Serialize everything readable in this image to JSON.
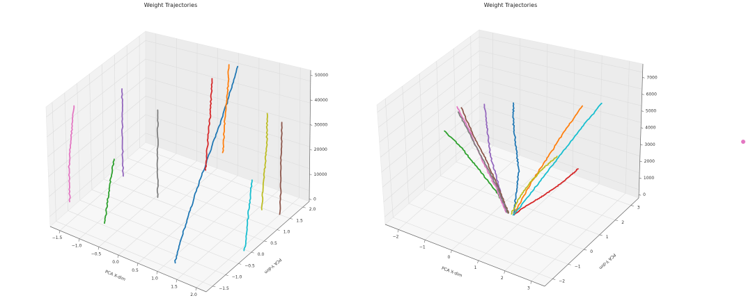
{
  "chart_data": [
    {
      "type": "line3d",
      "title": "Weight Trajectories",
      "xlabel": "PCA X-dim",
      "ylabel": "PCA Y-dim",
      "zlabel": "",
      "xlim": [
        -1.8,
        2.1
      ],
      "ylim": [
        -1.8,
        2.1
      ],
      "zlim": [
        -1000,
        52000
      ],
      "xticks": [
        "−1.5",
        "−1.0",
        "−0.5",
        "0.0",
        "0.5",
        "1.0",
        "1.5",
        "2.0"
      ],
      "yticks": [
        "−1.5",
        "−1.0",
        "−0.5",
        "0.0",
        "0.5",
        "1.0",
        "1.5",
        "2.0"
      ],
      "zticks": [
        "0",
        "10000",
        "20000",
        "30000",
        "40000",
        "50000"
      ],
      "grid": true,
      "series": [
        {
          "color": "#1f77b4",
          "x": [
            1.05,
            1.0,
            0.9,
            0.8,
            0.7,
            0.55
          ],
          "y": [
            -1.4,
            -1.0,
            -0.4,
            0.3,
            1.0,
            1.7
          ],
          "z": [
            0,
            10000,
            20000,
            30000,
            40000,
            50000
          ]
        },
        {
          "color": "#ff7f0e",
          "x": [
            0.4,
            0.4,
            0.4,
            0.4
          ],
          "y": [
            1.4,
            1.45,
            1.55,
            1.6
          ],
          "z": [
            15000,
            27000,
            39000,
            51000
          ]
        },
        {
          "color": "#2ca02c",
          "x": [
            -0.9,
            -0.85,
            -0.8,
            -0.75
          ],
          "y": [
            -1.1,
            -1.05,
            -1.0,
            -0.95
          ],
          "z": [
            0,
            10000,
            20000,
            28000
          ]
        },
        {
          "color": "#d62728",
          "x": [
            0.0,
            0.02,
            0.05,
            0.05
          ],
          "y": [
            1.35,
            1.4,
            1.45,
            1.5
          ],
          "z": [
            5000,
            17000,
            30000,
            44000
          ]
        },
        {
          "color": "#9467bd",
          "x": [
            -1.5,
            -1.5,
            -1.5
          ],
          "y": [
            0.5,
            0.5,
            0.5
          ],
          "z": [
            0,
            20000,
            40000
          ]
        },
        {
          "color": "#8c564b",
          "x": [
            1.9,
            1.9,
            1.9
          ],
          "y": [
            1.3,
            1.3,
            1.3
          ],
          "z": [
            0,
            20000,
            38000
          ]
        },
        {
          "color": "#e377c2",
          "x": [
            -1.9,
            -1.9,
            -1.85,
            -1.8
          ],
          "y": [
            -0.9,
            -0.9,
            -0.85,
            -0.8
          ],
          "z": [
            0,
            15000,
            30000,
            43000
          ]
        },
        {
          "color": "#7f7f7f",
          "x": [
            -0.5,
            -0.5,
            -0.5
          ],
          "y": [
            0.3,
            0.3,
            0.3
          ],
          "z": [
            0,
            20000,
            39000
          ]
        },
        {
          "color": "#bcbd22",
          "x": [
            1.5,
            1.55,
            1.6,
            1.6
          ],
          "y": [
            1.2,
            1.2,
            1.2,
            1.2
          ],
          "z": [
            0,
            14000,
            28000,
            41000
          ]
        },
        {
          "color": "#17becf",
          "x": [
            2.0,
            2.0,
            2.0
          ],
          "y": [
            -0.2,
            -0.1,
            0.0
          ],
          "z": [
            0,
            15000,
            28000
          ]
        }
      ]
    },
    {
      "type": "line3d",
      "title": "Weight Trajectories",
      "xlabel": "PCA X-dim",
      "ylabel": "PCA Y-dim",
      "zlabel": "",
      "xlim": [
        -2.8,
        3.5
      ],
      "ylim": [
        -2.8,
        3.4
      ],
      "zlim": [
        -200,
        7800
      ],
      "xticks": [
        "−2",
        "−1",
        "0",
        "1",
        "2",
        "3"
      ],
      "yticks": [
        "−2",
        "−1",
        "0",
        "1",
        "2",
        "3"
      ],
      "zticks": [
        "0",
        "1000",
        "2000",
        "3000",
        "4000",
        "5000",
        "6000",
        "7000"
      ],
      "grid": true,
      "series": [
        {
          "color": "#1f77b4",
          "x": [
            0.6,
            0.7,
            0.8,
            0.7,
            0.6,
            0.6
          ],
          "y": [
            0.0,
            0.0,
            0.0,
            0.0,
            0.0,
            0.0
          ],
          "z": [
            0,
            1500,
            3000,
            4500,
            6000,
            7400
          ]
        },
        {
          "color": "#ff7f0e",
          "x": [
            0.6,
            1.0,
            1.5,
            2.0,
            2.5
          ],
          "y": [
            0.0,
            0.3,
            0.6,
            0.9,
            1.2
          ],
          "z": [
            0,
            1800,
            3600,
            5400,
            7000
          ]
        },
        {
          "color": "#2ca02c",
          "x": [
            0.4,
            0.0,
            -0.6,
            -1.2,
            -1.8
          ],
          "y": [
            0.0,
            -0.1,
            -0.2,
            -0.3,
            -0.4
          ],
          "z": [
            0,
            1200,
            2400,
            3600,
            4500
          ]
        },
        {
          "color": "#d62728",
          "x": [
            0.6,
            1.0,
            1.5,
            2.0,
            2.5
          ],
          "y": [
            0.0,
            0.2,
            0.5,
            0.8,
            1.0
          ],
          "z": [
            0,
            700,
            1400,
            2200,
            3200
          ]
        },
        {
          "color": "#9467bd",
          "x": [
            0.3,
            0.0,
            -0.3,
            -0.4,
            -0.5
          ],
          "y": [
            0.0,
            0.0,
            0.0,
            0.0,
            0.0
          ],
          "z": [
            0,
            1700,
            3400,
            5100,
            6700
          ]
        },
        {
          "color": "#8c564b",
          "x": [
            0.4,
            0.0,
            -0.5,
            -1.0,
            -1.5
          ],
          "y": [
            0.0,
            0.0,
            0.1,
            0.1,
            0.2
          ],
          "z": [
            0,
            1400,
            2800,
            4200,
            5700
          ]
        },
        {
          "color": "#e377c2",
          "x": [
            0.3,
            -0.1,
            -0.6,
            -1.1,
            -1.6
          ],
          "y": [
            0.0,
            0.0,
            0.0,
            0.1,
            0.1
          ],
          "z": [
            0,
            1400,
            2800,
            4300,
            5800
          ]
        },
        {
          "color": "#7f7f7f",
          "x": [
            0.35,
            0.0,
            -0.5,
            -1.0,
            -1.5
          ],
          "y": [
            0.0,
            0.0,
            0.0,
            0.0,
            0.0
          ],
          "z": [
            0,
            1300,
            2700,
            4100,
            5600
          ]
        },
        {
          "color": "#bcbd22",
          "x": [
            0.5,
            0.7,
            1.0,
            1.4,
            1.8
          ],
          "y": [
            0.0,
            0.2,
            0.4,
            0.6,
            0.8
          ],
          "z": [
            0,
            1000,
            2000,
            3000,
            3800
          ]
        },
        {
          "color": "#17becf",
          "x": [
            0.6,
            1.2,
            1.8,
            2.4,
            3.0
          ],
          "y": [
            0.0,
            0.4,
            0.8,
            1.2,
            1.6
          ],
          "z": [
            0,
            1800,
            3600,
            5400,
            7000
          ]
        }
      ]
    }
  ]
}
